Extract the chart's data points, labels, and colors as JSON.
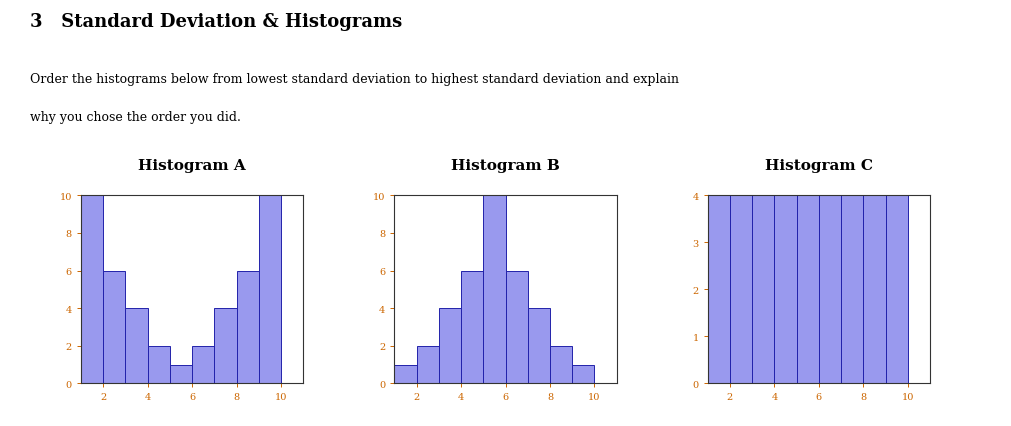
{
  "title": "3   Standard Deviation & Histograms",
  "description_line1": "Order the histograms below from lowest standard deviation to highest standard deviation and explain",
  "description_line2": "why you chose the order you did.",
  "hist_A_title": "Histogram A",
  "hist_B_title": "Histogram B",
  "hist_C_title": "Histogram C",
  "hist_A_values": [
    10,
    6,
    4,
    2,
    1,
    2,
    4,
    6,
    10
  ],
  "hist_B_values": [
    1,
    2,
    4,
    6,
    10,
    6,
    4,
    2,
    1
  ],
  "hist_C_values": [
    4,
    4,
    4,
    4,
    4,
    4,
    4,
    4,
    4
  ],
  "bar_left_edges": [
    1,
    2,
    3,
    4,
    5,
    6,
    7,
    8,
    9
  ],
  "bar_color": "#9999ee",
  "bar_edge_color": "#2222aa",
  "background_color": "#ffffff",
  "xticks": [
    2,
    4,
    6,
    8,
    10
  ],
  "hist_A_ylim": [
    0,
    10
  ],
  "hist_A_yticks": [
    0,
    2,
    4,
    6,
    8,
    10
  ],
  "hist_B_ylim": [
    0,
    10
  ],
  "hist_B_yticks": [
    0,
    2,
    4,
    6,
    8,
    10
  ],
  "hist_C_ylim": [
    0,
    4
  ],
  "hist_C_yticks": [
    0,
    1,
    2,
    3,
    4
  ],
  "bar_width": 1.0,
  "title_fontsize": 13,
  "hist_title_fontsize": 11,
  "desc_fontsize": 9,
  "tick_fontsize": 7,
  "text_color": "#000000",
  "tick_color": "#cc6600",
  "spine_color": "#333333"
}
